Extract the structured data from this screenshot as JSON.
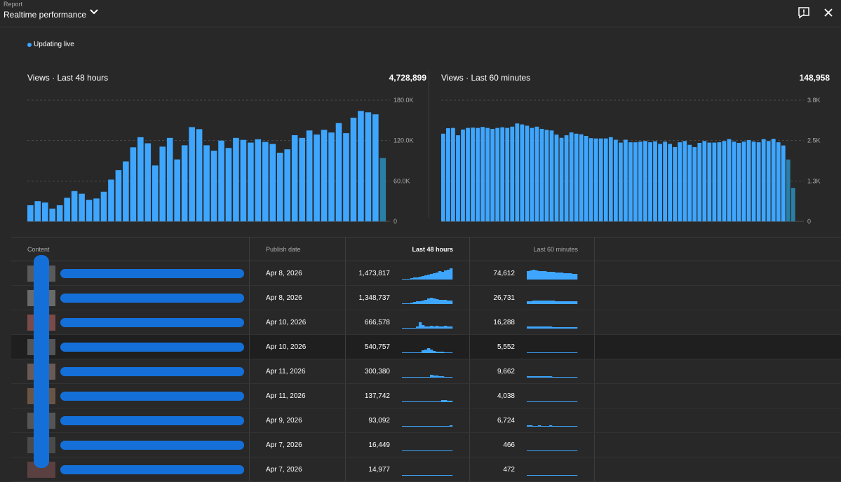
{
  "header": {
    "subtitle": "Report",
    "title": "Realtime performance",
    "colors": {
      "accent": "#3ea6ff",
      "bar": "#3ea6ff",
      "bar_recent": "#2a7fa6"
    }
  },
  "live_status": "Updating live",
  "chart_data": [
    {
      "type": "bar",
      "title": "Views · Last 48 hours",
      "total": "4,728,899",
      "ytick_labels": [
        "180.0K",
        "120.0K",
        "60.0K",
        "0"
      ],
      "ylim": [
        0,
        180000
      ],
      "values": [
        24000,
        30000,
        28000,
        19000,
        24000,
        35000,
        45000,
        41000,
        32000,
        34000,
        44000,
        62000,
        76000,
        89000,
        110000,
        125000,
        116000,
        83000,
        111000,
        124000,
        92000,
        113000,
        140000,
        137000,
        113000,
        105000,
        120000,
        109000,
        124000,
        121000,
        117000,
        122000,
        118000,
        115000,
        102000,
        107000,
        128000,
        124000,
        135000,
        129000,
        136000,
        132000,
        146000,
        131000,
        154000,
        164000,
        162000,
        159000,
        94000
      ]
    },
    {
      "type": "bar",
      "title": "Views · Last 60 minutes",
      "total": "148,958",
      "ytick_labels": [
        "3.8K",
        "2.5K",
        "1.3K",
        "0"
      ],
      "ylim": [
        0,
        3800
      ],
      "values": [
        2750,
        2920,
        2930,
        2700,
        2880,
        2930,
        2940,
        2930,
        2960,
        2930,
        2900,
        2930,
        2950,
        2930,
        2970,
        3070,
        3040,
        3000,
        2930,
        2970,
        2900,
        2870,
        2850,
        2720,
        2620,
        2700,
        2790,
        2750,
        2730,
        2680,
        2610,
        2600,
        2600,
        2600,
        2640,
        2560,
        2470,
        2560,
        2480,
        2480,
        2500,
        2520,
        2480,
        2510,
        2430,
        2500,
        2430,
        2330,
        2480,
        2520,
        2400,
        2330,
        2460,
        2520,
        2470,
        2470,
        2480,
        2520,
        2580,
        2500,
        2460,
        2500,
        2550,
        2500,
        2480,
        2580,
        2520,
        2590,
        2480,
        2380,
        1940,
        1050,
        0
      ]
    }
  ],
  "table": {
    "headers": {
      "content": "Content",
      "publish": "Publish date",
      "h48": "Last 48 hours",
      "m60": "Last 60 minutes"
    },
    "rows": [
      {
        "date": "Apr 8, 2026",
        "v48": "1,473,817",
        "v60": "74,612",
        "thumb": "#5a5a5a",
        "s48": [
          1,
          1,
          1,
          2,
          3,
          3,
          4,
          5,
          6,
          7,
          8,
          9,
          10,
          12,
          11,
          13,
          14,
          16
        ],
        "s60": [
          12,
          13,
          14,
          13,
          12,
          12,
          12,
          11,
          11,
          11,
          10,
          10,
          10,
          9,
          9,
          9,
          8,
          8
        ]
      },
      {
        "date": "Apr 8, 2026",
        "v48": "1,348,737",
        "v60": "26,731",
        "thumb": "#6a6a6a",
        "s48": [
          0,
          0,
          1,
          2,
          3,
          4,
          4,
          5,
          6,
          8,
          9,
          8,
          7,
          6,
          6,
          6,
          5,
          5
        ],
        "s60": [
          4,
          4,
          5,
          5,
          5,
          5,
          5,
          5,
          5,
          5,
          4,
          4,
          4,
          4,
          4,
          4,
          4,
          4
        ]
      },
      {
        "date": "Apr 10, 2026",
        "v48": "666,578",
        "v60": "16,288",
        "thumb": "#7a4a4a",
        "s48": [
          0,
          0,
          0,
          0,
          0,
          3,
          9,
          5,
          3,
          3,
          4,
          3,
          4,
          3,
          3,
          4,
          3,
          3
        ],
        "s60": [
          3,
          3,
          3,
          3,
          3,
          3,
          3,
          3,
          3,
          2,
          2,
          2,
          2,
          2,
          2,
          2,
          2,
          2
        ]
      },
      {
        "date": "Apr 10, 2026",
        "v48": "540,757",
        "v60": "5,552",
        "thumb": "#555",
        "s48": [
          0,
          0,
          0,
          0,
          0,
          0,
          1,
          4,
          5,
          7,
          5,
          3,
          2,
          2,
          2,
          1,
          1,
          1
        ],
        "s60": [
          1,
          1,
          1,
          1,
          1,
          1,
          1,
          1,
          1,
          1,
          1,
          1,
          1,
          1,
          1,
          1,
          1,
          1
        ]
      },
      {
        "date": "Apr 11, 2026",
        "v48": "300,380",
        "v60": "9,662",
        "thumb": "#6a5a55",
        "s48": [
          0,
          0,
          0,
          0,
          0,
          0,
          0,
          0,
          0,
          0,
          4,
          3,
          3,
          2,
          2,
          1,
          1,
          1
        ],
        "s60": [
          2,
          2,
          2,
          2,
          2,
          2,
          2,
          2,
          2,
          1,
          1,
          1,
          1,
          1,
          1,
          1,
          1,
          1
        ]
      },
      {
        "date": "Apr 11, 2026",
        "v48": "137,742",
        "v60": "4,038",
        "thumb": "#6a5545",
        "s48": [
          0,
          0,
          0,
          0,
          0,
          0,
          0,
          0,
          0,
          0,
          0,
          0,
          0,
          0,
          3,
          3,
          2,
          2
        ],
        "s60": [
          1,
          1,
          1,
          1,
          1,
          1,
          1,
          1,
          1,
          1,
          1,
          1,
          1,
          1,
          1,
          1,
          1,
          1
        ]
      },
      {
        "date": "Apr 9, 2026",
        "v48": "93,092",
        "v60": "6,724",
        "thumb": "#555",
        "s48": [
          1,
          1,
          1,
          1,
          1,
          1,
          1,
          1,
          1,
          1,
          1,
          1,
          1,
          1,
          1,
          1,
          1,
          2
        ],
        "s60": [
          2,
          2,
          1,
          1,
          2,
          1,
          1,
          1,
          2,
          1,
          1,
          1,
          1,
          1,
          1,
          1,
          1,
          1
        ]
      },
      {
        "date": "Apr 7, 2026",
        "v48": "16,449",
        "v60": "466",
        "thumb": "#4a4a4a",
        "s48": [
          1,
          1,
          1,
          1,
          1,
          1,
          1,
          1,
          1,
          1,
          1,
          1,
          1,
          1,
          1,
          1,
          1,
          1
        ],
        "s60": [
          1,
          1,
          1,
          1,
          1,
          1,
          1,
          1,
          1,
          1,
          1,
          1,
          1,
          1,
          1,
          1,
          1,
          1
        ]
      },
      {
        "date": "Apr 7, 2026",
        "v48": "14,977",
        "v60": "472",
        "thumb": "#5a4040",
        "s48": [
          1,
          1,
          1,
          1,
          1,
          1,
          1,
          1,
          1,
          1,
          1,
          1,
          1,
          1,
          1,
          1,
          1,
          1
        ],
        "s60": [
          1,
          1,
          1,
          1,
          1,
          1,
          1,
          1,
          1,
          1,
          1,
          1,
          1,
          1,
          1,
          1,
          1,
          1
        ]
      }
    ]
  }
}
